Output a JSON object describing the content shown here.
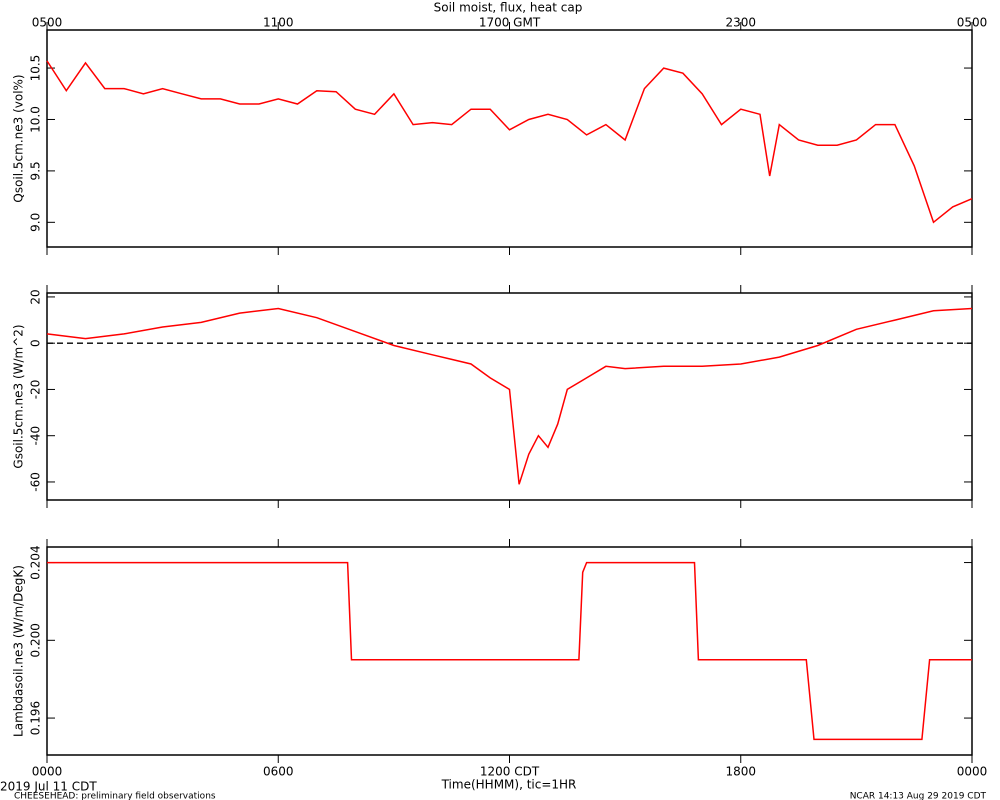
{
  "footer": {
    "date": "2019 Jul 11 CDT",
    "project": "CHEESEHEAD: preliminary field observations",
    "credit": "NCAR 14:13 Aug 29 2019 CDT"
  },
  "chart_data": [
    {
      "type": "line",
      "title": "Soil moist, flux, heat cap",
      "ylabel": "Qsoil.5cm.ne3 (vol%)",
      "color": "#ff0000",
      "x2ticks": [
        {
          "value": 0,
          "label": "0500"
        },
        {
          "value": 6,
          "label": "1100"
        },
        {
          "value": 12,
          "label": "1700 GMT"
        },
        {
          "value": 18,
          "label": "2300"
        },
        {
          "value": 24,
          "label": "0500"
        }
      ],
      "xlim": [
        0,
        24
      ],
      "ylim": [
        8.76,
        10.87
      ],
      "yticks": [
        {
          "value": 9,
          "label": "9.0"
        },
        9.5,
        {
          "value": 10,
          "label": "10.0"
        },
        10.5
      ],
      "x": [
        0,
        0.5,
        1,
        1.5,
        2,
        2.5,
        3,
        3.5,
        4,
        4.5,
        5,
        5.5,
        6,
        6.5,
        7,
        7.5,
        8,
        8.5,
        9,
        9.5,
        10,
        10.5,
        11,
        11.5,
        12,
        12.5,
        13,
        13.5,
        14,
        14.5,
        15,
        15.5,
        16,
        16.5,
        17,
        17.5,
        18,
        18.5,
        18.75,
        19,
        19.5,
        20,
        20.5,
        21,
        21.5,
        22,
        22.5,
        23,
        23.5,
        24
      ],
      "values": [
        10.57,
        10.28,
        10.55,
        10.3,
        10.3,
        10.25,
        10.3,
        10.25,
        10.2,
        10.2,
        10.15,
        10.15,
        10.2,
        10.15,
        10.28,
        10.27,
        10.1,
        10.05,
        10.25,
        9.95,
        9.97,
        9.95,
        10.1,
        10.1,
        9.9,
        10.0,
        10.05,
        10.0,
        9.85,
        9.95,
        9.8,
        10.3,
        10.5,
        10.45,
        10.25,
        9.95,
        10.1,
        10.05,
        9.45,
        9.95,
        9.8,
        9.75,
        9.75,
        9.8,
        9.95,
        9.95,
        9.55,
        9.0,
        9.15,
        9.23
      ]
    },
    {
      "type": "line",
      "ylabel": "Gsoil.5cm.ne3 (W/m^2)",
      "color": "#ff0000",
      "zero_line": true,
      "xlim": [
        0,
        24
      ],
      "ylim": [
        -67.8,
        21.7
      ],
      "yticks": [
        20,
        0,
        -20,
        -40,
        -60
      ],
      "x": [
        0,
        1,
        2,
        3,
        4,
        5,
        6,
        7,
        8,
        9,
        10,
        10.5,
        11,
        11.5,
        12,
        12.25,
        12.5,
        12.75,
        13,
        13.25,
        13.5,
        14,
        14.5,
        15,
        16,
        17,
        18,
        19,
        20,
        21,
        22,
        23,
        24
      ],
      "values": [
        4,
        2,
        4,
        7,
        9,
        13,
        15,
        11,
        5,
        -1,
        -5,
        -7,
        -9,
        -15,
        -20,
        -61,
        -48,
        -40,
        -45,
        -35,
        -20,
        -15,
        -10,
        -11,
        -10,
        -10,
        -9,
        -6,
        -1,
        6,
        10,
        14,
        15
      ]
    },
    {
      "type": "line",
      "ylabel": "Lambdasoil.ne3 (W/m/DegK)",
      "xlabel": "Time(HHMM), tic=1HR",
      "color": "#ff0000",
      "xlim": [
        0,
        24
      ],
      "ylim": [
        0.1941,
        0.2048
      ],
      "yticks": [
        0.196,
        {
          "value": 0.2,
          "label": "0.200"
        },
        0.204
      ],
      "xticks": [
        {
          "value": 0,
          "label": "0000"
        },
        {
          "value": 6,
          "label": "0600"
        },
        {
          "value": 12,
          "label": "1200 CDT"
        },
        {
          "value": 18,
          "label": "1800"
        },
        {
          "value": 24,
          "label": "0000"
        }
      ],
      "x": [
        0,
        7.8,
        7.9,
        13.8,
        13.9,
        14,
        16.8,
        16.9,
        19.7,
        19.9,
        22.7,
        22.9,
        24
      ],
      "values": [
        0.204,
        0.204,
        0.199,
        0.199,
        0.2035,
        0.204,
        0.204,
        0.199,
        0.199,
        0.1949,
        0.1949,
        0.199,
        0.199
      ]
    }
  ]
}
